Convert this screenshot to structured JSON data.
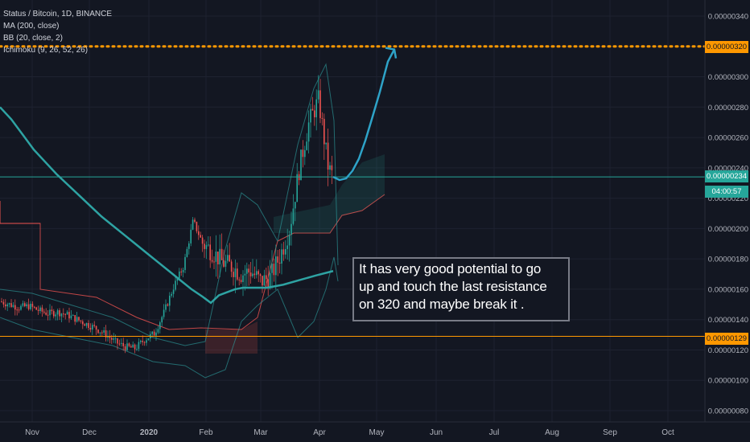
{
  "legend": {
    "symbol": "Status / Bitcoin, 1D, BINANCE",
    "ma": "MA (200, close)",
    "bb": "BB (20, close, 2)",
    "ichimoku": "Ichimoku (9, 26, 52, 26)"
  },
  "annotation": {
    "lines": [
      "It has very good potential to go",
      "up and touch the last resistance",
      "on 320 and maybe break it ."
    ]
  },
  "price_tags": {
    "resistance": "0.00000320",
    "current": "0.00000234",
    "countdown": "04:00:57",
    "support": "0.00000129"
  },
  "colors": {
    "background": "#131722",
    "grid": "#1e2230",
    "resistance": "#ff9800",
    "current": "#26a69a",
    "support": "#ff9800",
    "ma": "#2ea3a3",
    "up": "#26a69a",
    "down": "#ef5350"
  },
  "chart_data": {
    "type": "line",
    "title": "Status / Bitcoin, 1D, BINANCE",
    "y_ticks": [
      "0.00000340",
      "0.00000320",
      "0.00000300",
      "0.00000280",
      "0.00000260",
      "0.00000240",
      "0.00000220",
      "0.00000200",
      "0.00000180",
      "0.00000160",
      "0.00000140",
      "0.00000120",
      "0.00000100",
      "0.00000080"
    ],
    "y_tick_values": [
      340,
      320,
      300,
      280,
      260,
      240,
      220,
      200,
      180,
      160,
      140,
      120,
      100,
      80
    ],
    "ylim": [
      77,
      347
    ],
    "x_ticks": [
      "Nov",
      "Dec",
      "2020",
      "Feb",
      "Mar",
      "Apr",
      "May",
      "Jun",
      "Jul",
      "Aug",
      "Sep",
      "Oct"
    ],
    "x_tick_positions": [
      40,
      111,
      185,
      256,
      324,
      397,
      468,
      542,
      614,
      686,
      758,
      830
    ],
    "levels": {
      "resistance": 320,
      "current": 234,
      "support": 129
    },
    "series": [
      {
        "name": "MA (200, close)",
        "values": [
          280,
          272,
          262,
          252,
          244,
          236,
          229,
          222,
          215,
          208,
          202,
          196,
          190,
          184,
          178,
          172,
          166,
          160,
          155,
          151,
          156,
          158,
          160,
          161,
          161,
          161,
          161,
          162,
          163,
          166,
          169,
          172
        ],
        "x": [
          0,
          14,
          28,
          42,
          56,
          70,
          84,
          98,
          112,
          126,
          140,
          154,
          168,
          182,
          196,
          210,
          224,
          238,
          252,
          262,
          272,
          282,
          292,
          302,
          312,
          322,
          332,
          342,
          352,
          372,
          392,
          414
        ]
      },
      {
        "name": "Price",
        "values": [
          152,
          150,
          148,
          149,
          146,
          144,
          145,
          143,
          140,
          137,
          134,
          130,
          125,
          122,
          121,
          127,
          131,
          145,
          162,
          175,
          205,
          190,
          185,
          178,
          175,
          170,
          172,
          165,
          168,
          182,
          200,
          240,
          270,
          285,
          262,
          240,
          234
        ],
        "x": [
          0,
          12,
          24,
          36,
          48,
          60,
          72,
          84,
          96,
          108,
          120,
          132,
          144,
          156,
          168,
          180,
          192,
          204,
          216,
          228,
          240,
          252,
          264,
          276,
          288,
          300,
          312,
          324,
          336,
          348,
          360,
          372,
          384,
          396,
          402,
          408,
          414
        ]
      },
      {
        "name": "Projection",
        "values": [
          234,
          232,
          233,
          238,
          246,
          258,
          272,
          290,
          310,
          318
        ],
        "x": [
          414,
          422,
          430,
          438,
          446,
          454,
          462,
          472,
          482,
          490
        ]
      }
    ]
  }
}
